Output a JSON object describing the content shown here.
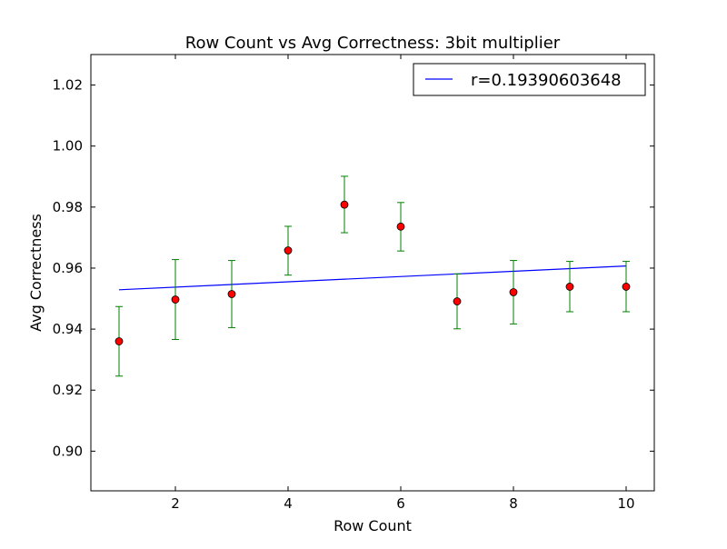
{
  "chart_data": {
    "type": "scatter",
    "title": "Row Count vs Avg Correctness: 3bit multiplier",
    "xlabel": "Row Count",
    "ylabel": "Avg Correctness",
    "xlim": [
      0.5,
      10.5
    ],
    "ylim": [
      0.887,
      1.03
    ],
    "xticks": [
      2,
      4,
      6,
      8,
      10
    ],
    "xtick_labels": [
      "2",
      "4",
      "6",
      "8",
      "10"
    ],
    "yticks": [
      0.9,
      0.92,
      0.94,
      0.96,
      0.98,
      1.0,
      1.02
    ],
    "ytick_labels": [
      "0.90",
      "0.92",
      "0.94",
      "0.96",
      "0.98",
      "1.00",
      "1.02"
    ],
    "grid": false,
    "legend_position": "top-right",
    "points": {
      "x": [
        1,
        2,
        3,
        4,
        5,
        6,
        7,
        8,
        9,
        10
      ],
      "y": [
        0.936,
        0.9497,
        0.9515,
        0.9658,
        0.9808,
        0.9736,
        0.9491,
        0.9521,
        0.9539,
        0.9539
      ],
      "err_low": [
        0.9246,
        0.9366,
        0.9405,
        0.9577,
        0.9716,
        0.9656,
        0.9401,
        0.9417,
        0.9457,
        0.9457
      ],
      "err_high": [
        0.9474,
        0.9628,
        0.9625,
        0.9737,
        0.9901,
        0.9815,
        0.9581,
        0.9625,
        0.9622,
        0.9622
      ]
    },
    "series": [
      {
        "name": "r=0.19390603648",
        "type": "line",
        "x": [
          1,
          10
        ],
        "y": [
          0.9529,
          0.9607
        ]
      }
    ],
    "colors": {
      "marker": "#ff0000",
      "marker_edge": "#000000",
      "errorbar": "#008000",
      "fit_line": "#0000ff"
    }
  }
}
